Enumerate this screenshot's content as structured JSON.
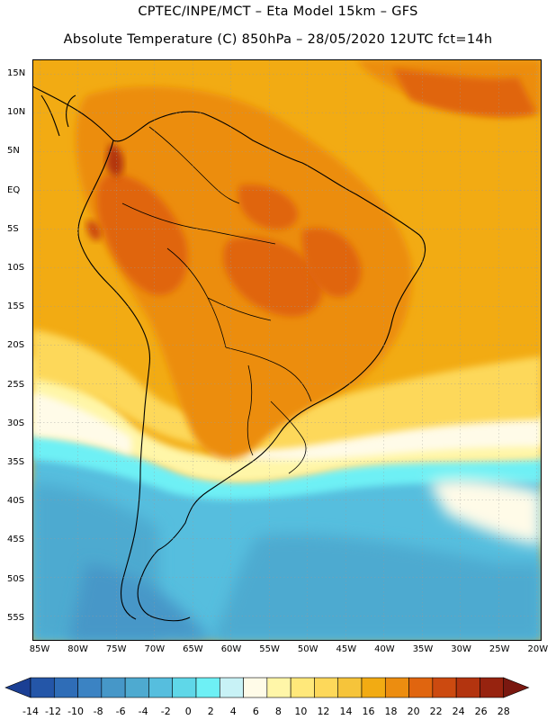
{
  "header": {
    "line1": "CPTEC/INPE/MCT –   Eta Model 15km – GFS",
    "line2": "Absolute Temperature (C) 850hPa – 28/05/2020 12UTC fct=14h"
  },
  "axes": {
    "lat_labels": [
      "15N",
      "10N",
      "5N",
      "EQ",
      "5S",
      "10S",
      "15S",
      "20S",
      "25S",
      "30S",
      "35S",
      "40S",
      "45S",
      "50S",
      "55S"
    ],
    "lon_labels": [
      "85W",
      "80W",
      "75W",
      "70W",
      "65W",
      "60W",
      "55W",
      "50W",
      "45W",
      "40W",
      "35W",
      "30W",
      "25W",
      "20W"
    ]
  },
  "legend": {
    "tick_labels": [
      "-14",
      "-12",
      "-10",
      "-8",
      "-6",
      "-4",
      "-2",
      "0",
      "2",
      "4",
      "6",
      "8",
      "10",
      "12",
      "14",
      "16",
      "18",
      "20",
      "22",
      "24",
      "26",
      "28"
    ],
    "colors": [
      "#1b3f94",
      "#2456a8",
      "#2f6db7",
      "#3b83c3",
      "#4697c8",
      "#4eaad0",
      "#56bede",
      "#5fd7e8",
      "#6ef0f5",
      "#c8f2f6",
      "#fffbe8",
      "#fff6a8",
      "#ffe87a",
      "#fdd85a",
      "#f6c43a",
      "#f2ab13",
      "#ec8d10",
      "#e0650f",
      "#cc4a10",
      "#b3340f",
      "#97230f",
      "#7a1810"
    ]
  }
}
